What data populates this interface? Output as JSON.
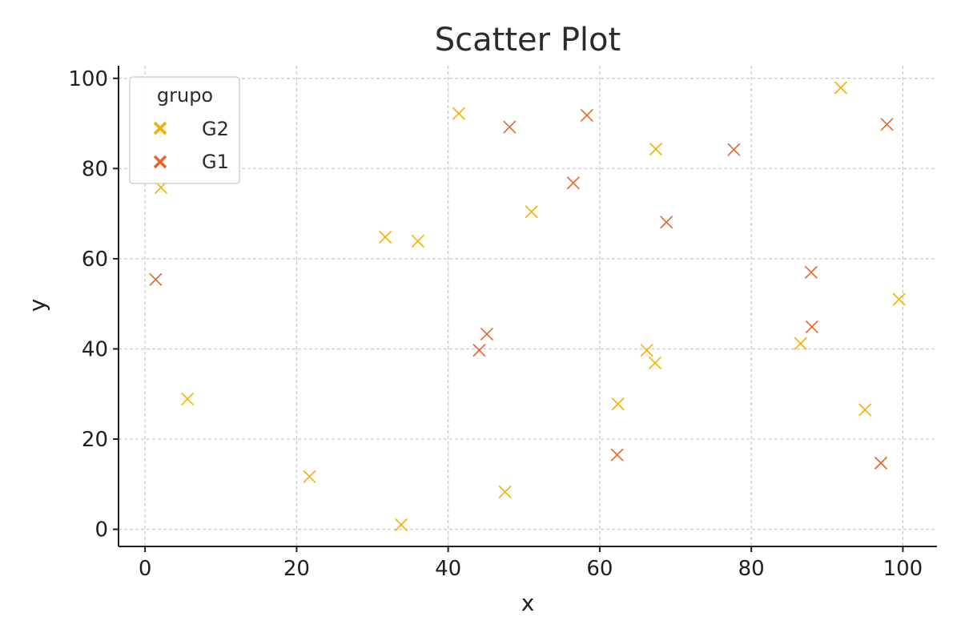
{
  "chart_data": {
    "type": "scatter",
    "title": "Scatter Plot",
    "xlabel": "x",
    "ylabel": "y",
    "xlim": [
      -3.5,
      104.5
    ],
    "ylim": [
      -3.8,
      102.8
    ],
    "xticks": [
      0,
      20,
      40,
      60,
      80,
      100
    ],
    "yticks": [
      0,
      20,
      40,
      60,
      80,
      100
    ],
    "grid": true,
    "legend": {
      "title": "grupo",
      "placement": "top-left"
    },
    "series": [
      {
        "name": "G2",
        "color": "#F5B000",
        "marker": "x",
        "points": [
          [
            2.1,
            75.8
          ],
          [
            5.6,
            28.9
          ],
          [
            21.7,
            11.7
          ],
          [
            31.7,
            64.8
          ],
          [
            36.0,
            63.9
          ],
          [
            41.4,
            92.2
          ],
          [
            33.8,
            1.0
          ],
          [
            47.5,
            8.3
          ],
          [
            51.0,
            70.4
          ],
          [
            62.4,
            27.8
          ],
          [
            66.2,
            39.7
          ],
          [
            67.3,
            36.9
          ],
          [
            67.4,
            84.3
          ],
          [
            86.5,
            41.2
          ],
          [
            91.8,
            97.9
          ],
          [
            95.0,
            26.5
          ],
          [
            99.5,
            51.0
          ]
        ]
      },
      {
        "name": "G1",
        "color": "#E8622A",
        "marker": "x",
        "points": [
          [
            1.4,
            55.4
          ],
          [
            44.1,
            39.7
          ],
          [
            45.1,
            43.3
          ],
          [
            48.1,
            89.2
          ],
          [
            56.5,
            76.8
          ],
          [
            58.3,
            91.8
          ],
          [
            62.3,
            16.5
          ],
          [
            68.8,
            68.1
          ],
          [
            77.7,
            84.2
          ],
          [
            87.9,
            57.0
          ],
          [
            88.0,
            44.9
          ],
          [
            97.1,
            14.7
          ],
          [
            97.9,
            89.8
          ]
        ]
      }
    ]
  }
}
